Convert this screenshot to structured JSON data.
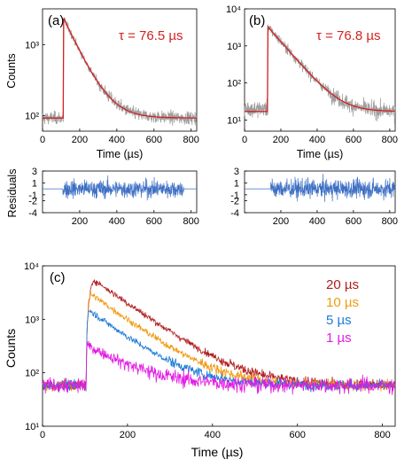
{
  "chart_data": [
    {
      "panel_label": "(a)",
      "type": "line",
      "ylabel": "Counts",
      "xlabel": "Time (µs)",
      "log_y": true,
      "xlim": [
        0,
        830
      ],
      "ylim": [
        60,
        3200
      ],
      "xticks": [
        "0",
        "200",
        "400",
        "600",
        "800"
      ],
      "yticks": [
        "10²",
        "10³"
      ],
      "annotation": "τ = 76.5 µs",
      "series": [
        {
          "role": "data",
          "color": "#9e9e9e",
          "onset": 112,
          "peak": 2400,
          "baseline": 92,
          "tau": 76.5,
          "noise": 0.09
        },
        {
          "role": "fit",
          "color": "#d42020",
          "onset": 112,
          "peak": 2400,
          "baseline": 92,
          "tau": 76.5
        }
      ]
    },
    {
      "panel_label": "(b)",
      "type": "line",
      "log_y": true,
      "xlabel": "Time (µs)",
      "xlim": [
        0,
        830
      ],
      "ylim": [
        5,
        10000
      ],
      "xticks": [
        "0",
        "200",
        "400",
        "600",
        "800"
      ],
      "yticks": [
        "10¹",
        "10²",
        "10³",
        "10⁴"
      ],
      "annotation": "τ = 76.8 µs",
      "series": [
        {
          "role": "data",
          "color": "#9e9e9e",
          "onset": 128,
          "peak": 3300,
          "baseline": 17,
          "prebase": 20,
          "tau": 76.8,
          "noise": 0.22
        },
        {
          "role": "fit",
          "color": "#d42020",
          "onset": 128,
          "peak": 3300,
          "baseline": 17,
          "tau": 76.8
        }
      ]
    },
    {
      "type": "line",
      "ylabel": "Residuals",
      "xlim": [
        0,
        830
      ],
      "ylim": [
        -4,
        3
      ],
      "yticks": [
        "3",
        "1",
        "-1",
        "-2",
        "-4"
      ],
      "xticks": [
        "200",
        "400",
        "600",
        "800"
      ],
      "series": [
        {
          "role": "residuals",
          "color": "#3d6fc4",
          "start": 110,
          "end": 760,
          "amplitude": 1.7
        }
      ]
    },
    {
      "type": "line",
      "xlim": [
        0,
        830
      ],
      "ylim": [
        -4,
        3
      ],
      "yticks": [
        "3",
        "1",
        "-1",
        "-2",
        "-4"
      ],
      "xticks": [
        "200",
        "400",
        "600",
        "800"
      ],
      "series": [
        {
          "role": "residuals",
          "color": "#3d6fc4",
          "start": 145,
          "end": 830,
          "amplitude": 1.8
        }
      ]
    },
    {
      "panel_label": "(c)",
      "type": "line",
      "log_y": true,
      "ylabel": "Counts",
      "xlabel": "Time (µs)",
      "xlim": [
        0,
        830
      ],
      "ylim": [
        10,
        10000
      ],
      "xticks": [
        "0",
        "200",
        "400",
        "600",
        "800"
      ],
      "yticks": [
        "10¹",
        "10²",
        "10³",
        "10⁴"
      ],
      "series": [
        {
          "name": "20 µs",
          "color": "#b01c1c",
          "onset": 103,
          "rise": 17,
          "peak": 5500,
          "baseline": 58,
          "tau": 78,
          "noise": 0.1
        },
        {
          "name": "10 µs",
          "color": "#f09a10",
          "onset": 103,
          "rise": 10,
          "peak": 3000,
          "baseline": 58,
          "tau": 76,
          "noise": 0.1
        },
        {
          "name": "5 µs",
          "color": "#1e7ad6",
          "onset": 103,
          "rise": 5,
          "peak": 1500,
          "baseline": 58,
          "tau": 74,
          "noise": 0.1
        },
        {
          "name": "1 µs",
          "color": "#e41ae4",
          "onset": 103,
          "rise": 1,
          "peak": 330,
          "baseline": 58,
          "tau": 85,
          "noise": 0.15
        }
      ]
    }
  ]
}
